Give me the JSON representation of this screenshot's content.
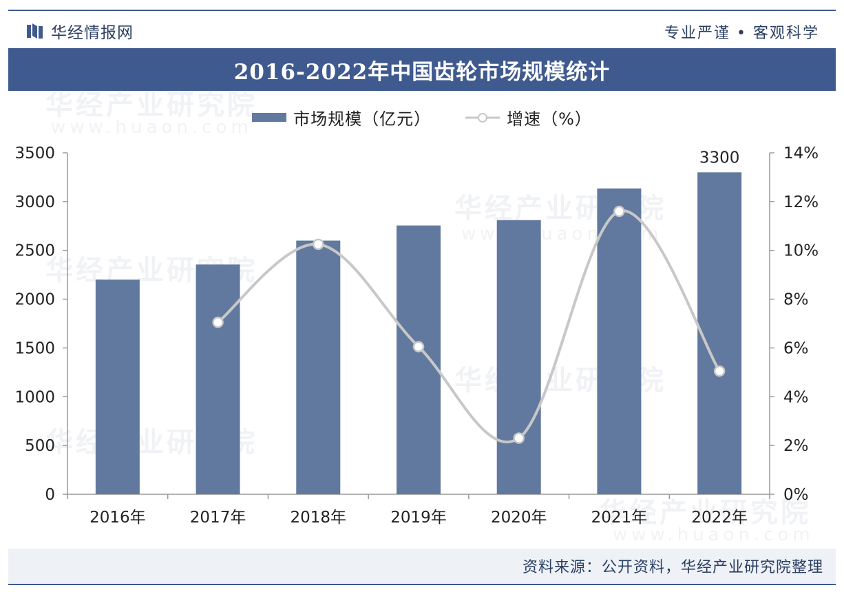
{
  "header": {
    "brand": "华经情报网",
    "slogan": "专业严谨 • 客观科学",
    "title": "2016-2022年中国齿轮市场规模统计"
  },
  "colors": {
    "brand": "#3f5a8f",
    "bar": "#62799f",
    "line": "#c8c8c8",
    "marker_fill": "#ffffff",
    "axis": "#9a9a9a"
  },
  "watermark": {
    "text": "华经产业研究院",
    "url": "www.huaon.com"
  },
  "chart_data": {
    "type": "bar",
    "title": "2016-2022年中国齿轮市场规模统计",
    "categories": [
      "2016年",
      "2017年",
      "2018年",
      "2019年",
      "2020年",
      "2021年",
      "2022年"
    ],
    "series": [
      {
        "name": "市场规模（亿元）",
        "type": "bar",
        "axis": "left",
        "values": [
          2200,
          2355,
          2600,
          2755,
          2810,
          3135,
          3300
        ]
      },
      {
        "name": "增速（%）",
        "type": "line",
        "axis": "right",
        "values": [
          null,
          7.05,
          10.25,
          6.05,
          2.3,
          11.6,
          5.05
        ]
      }
    ],
    "data_labels": [
      {
        "series": 0,
        "index": 6,
        "text": "3300"
      }
    ],
    "y_left": {
      "min": 0,
      "max": 3500,
      "ticks": [
        "0",
        "500",
        "1000",
        "1500",
        "2000",
        "2500",
        "3000",
        "3500"
      ]
    },
    "y_right": {
      "min": 0,
      "max": 14,
      "ticks": [
        "0%",
        "2%",
        "4%",
        "6%",
        "8%",
        "10%",
        "12%",
        "14%"
      ]
    },
    "legend": {
      "position": "top-center",
      "bar_label": "市场规模（亿元）",
      "line_label": "增速（%）"
    },
    "grid": false
  },
  "footer": {
    "source": "资料来源：公开资料，华经产业研究院整理"
  }
}
